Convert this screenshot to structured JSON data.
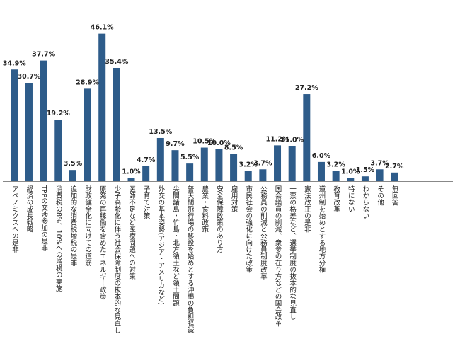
{
  "chart_data": {
    "type": "bar",
    "title": "",
    "xlabel": "",
    "ylabel": "",
    "unit": "%",
    "ylim": [
      0,
      50
    ],
    "grid": false,
    "legend": "none",
    "bar_color": "#2E5C8A",
    "categories": [
      "アベノミクスへの是非",
      "経済の成長戦略",
      "TPPの交渉参加の是非",
      "消費税の8%、10%への増税の実施",
      "追加的な消費税増税の是非",
      "財政健全化に向けての道筋",
      "原発の再稼働を含めたエネルギー政策",
      "少子高齢化に伴う社会保障制度の抜本的な見直し",
      "医師不足など医療問題への対策",
      "子育て対策",
      "外交の基本姿勢(アジア・アメリカなど)",
      "尖閣諸島・竹島・北方領土など領土問題",
      "普天間飛行場の移設を始めとする沖縄の負担軽減",
      "農業・食料政策",
      "安全保障政策のあり方",
      "雇用対策",
      "市民社会の強化に向けた政策",
      "公務員の削減と公務員制度改革",
      "国会議員の削減、衆参の在り方などの国会改革",
      "一票の格差など、選挙制度の抜本的な見直し",
      "憲法改正の是非",
      "道州制を始めとする地方分権",
      "教育改革",
      "特にない",
      "わからない",
      "その他",
      "無回答"
    ],
    "values": [
      34.9,
      30.7,
      37.7,
      19.2,
      3.5,
      28.9,
      46.1,
      35.4,
      1.0,
      4.7,
      13.5,
      9.7,
      5.5,
      10.5,
      10.0,
      8.5,
      3.2,
      3.7,
      11.2,
      11.0,
      27.2,
      6.0,
      3.2,
      1.0,
      1.5,
      3.7,
      2.7
    ],
    "data_labels": [
      "34.9%",
      "30.7%",
      "37.7%",
      "19.2%",
      "3.5%",
      "28.9%",
      "46.1%",
      "35.4%",
      "1.0%",
      "4.7%",
      "13.5%",
      "9.7%",
      "5.5%",
      "10.5%",
      "10.0%",
      "8.5%",
      "3.2%",
      "3.7%",
      "11.2%",
      "11.0%",
      "27.2%",
      "6.0%",
      "3.2%",
      "1.0%",
      "1.5%",
      "3.7%",
      "2.7%"
    ]
  }
}
